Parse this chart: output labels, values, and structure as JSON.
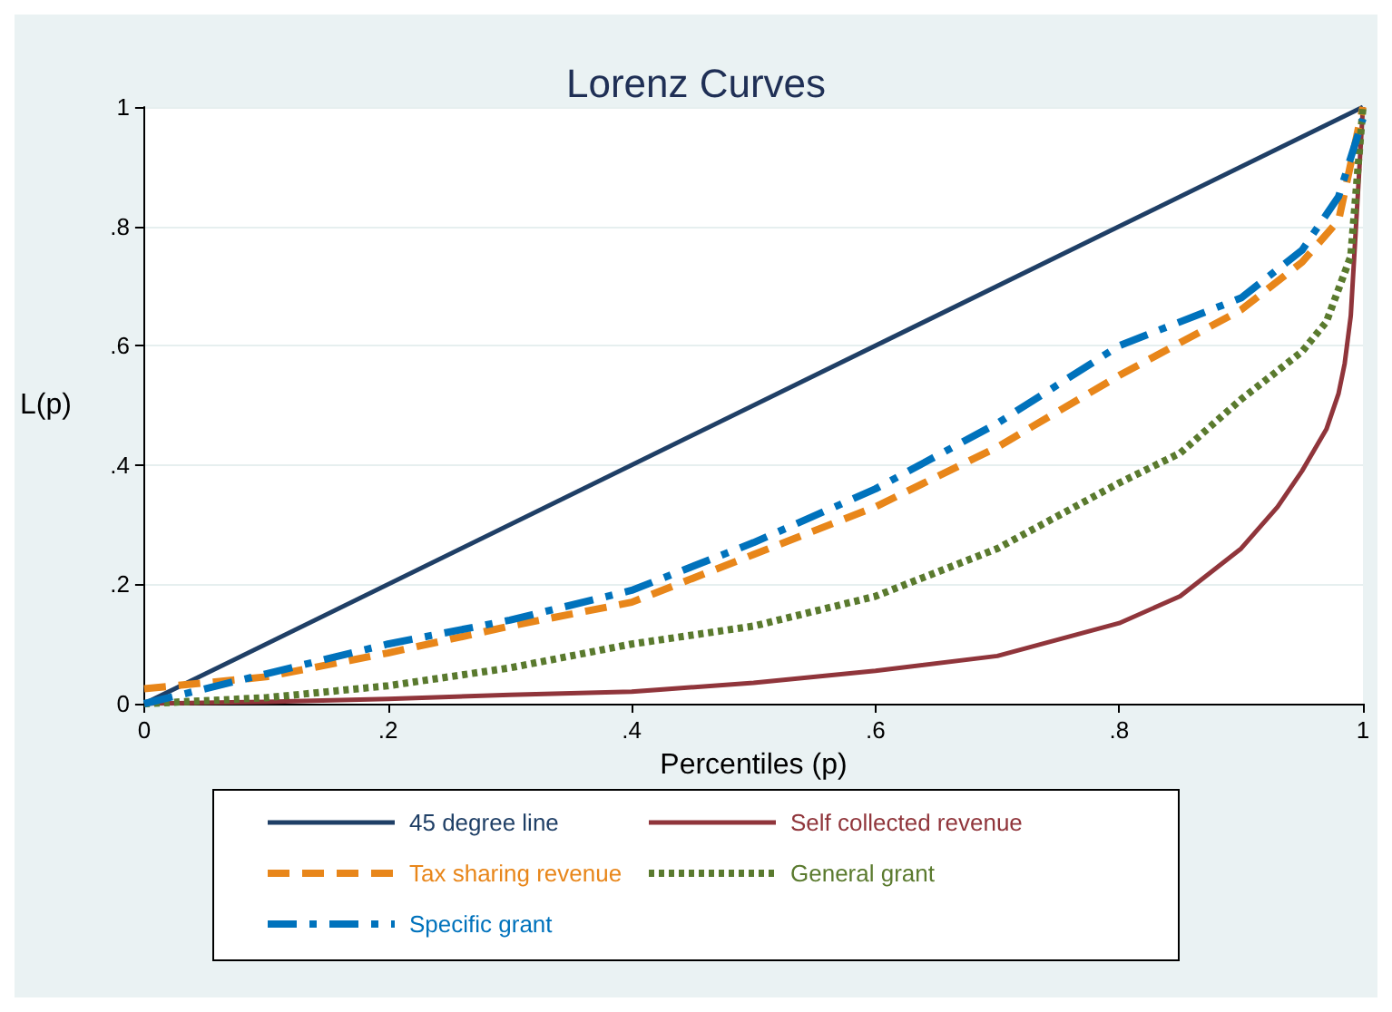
{
  "chart_data": {
    "type": "line",
    "title": "Lorenz Curves",
    "xlabel": "Percentiles (p)",
    "ylabel": "L(p)",
    "xlim": [
      0,
      1
    ],
    "ylim": [
      0,
      1
    ],
    "xticks": [
      0,
      {
        "value": 0.2,
        "label": ".2"
      },
      {
        "value": 0.4,
        "label": ".4"
      },
      {
        "value": 0.6,
        "label": ".6"
      },
      {
        "value": 0.8,
        "label": ".8"
      },
      1
    ],
    "yticks": [
      0,
      {
        "value": 0.2,
        "label": ".2"
      },
      {
        "value": 0.4,
        "label": ".4"
      },
      {
        "value": 0.6,
        "label": ".6"
      },
      {
        "value": 0.8,
        "label": ".8"
      },
      1
    ],
    "grid": "y",
    "legend": "bottom",
    "marker": "none",
    "series": [
      {
        "name": "45 degree line",
        "color": "#1f3f66",
        "line_style": "solid",
        "x": [
          0,
          1
        ],
        "values": [
          0,
          1
        ]
      },
      {
        "name": "Self collected revenue",
        "color": "#90353b",
        "line_style": "solid",
        "x": [
          0,
          0.1,
          0.2,
          0.3,
          0.4,
          0.5,
          0.6,
          0.7,
          0.8,
          0.85,
          0.9,
          0.93,
          0.95,
          0.97,
          0.98,
          0.985,
          0.99,
          1
        ],
        "values": [
          0,
          0.003,
          0.008,
          0.015,
          0.02,
          0.035,
          0.055,
          0.08,
          0.135,
          0.18,
          0.26,
          0.33,
          0.39,
          0.46,
          0.52,
          0.57,
          0.65,
          1
        ]
      },
      {
        "name": "Tax sharing revenue",
        "color": "#e8861a",
        "line_style": "dashed",
        "x": [
          0,
          0.1,
          0.2,
          0.3,
          0.4,
          0.5,
          0.6,
          0.7,
          0.8,
          0.9,
          0.95,
          0.98,
          1
        ],
        "values": [
          0.025,
          0.045,
          0.085,
          0.13,
          0.17,
          0.25,
          0.33,
          0.43,
          0.55,
          0.66,
          0.74,
          0.81,
          1
        ]
      },
      {
        "name": "General grant",
        "color": "#5a7a2e",
        "line_style": "dotted",
        "x": [
          0,
          0.1,
          0.2,
          0.3,
          0.4,
          0.5,
          0.6,
          0.7,
          0.8,
          0.85,
          0.9,
          0.95,
          0.97,
          0.99,
          1
        ],
        "values": [
          0,
          0.01,
          0.03,
          0.06,
          0.1,
          0.13,
          0.18,
          0.26,
          0.37,
          0.42,
          0.51,
          0.59,
          0.64,
          0.75,
          1
        ]
      },
      {
        "name": "Specific grant",
        "color": "#0072bc",
        "line_style": "dashdot",
        "x": [
          0,
          0.1,
          0.2,
          0.3,
          0.4,
          0.5,
          0.6,
          0.7,
          0.8,
          0.9,
          0.95,
          0.98,
          1
        ],
        "values": [
          0,
          0.05,
          0.1,
          0.14,
          0.19,
          0.27,
          0.36,
          0.47,
          0.6,
          0.68,
          0.76,
          0.85,
          0.98
        ]
      }
    ]
  }
}
